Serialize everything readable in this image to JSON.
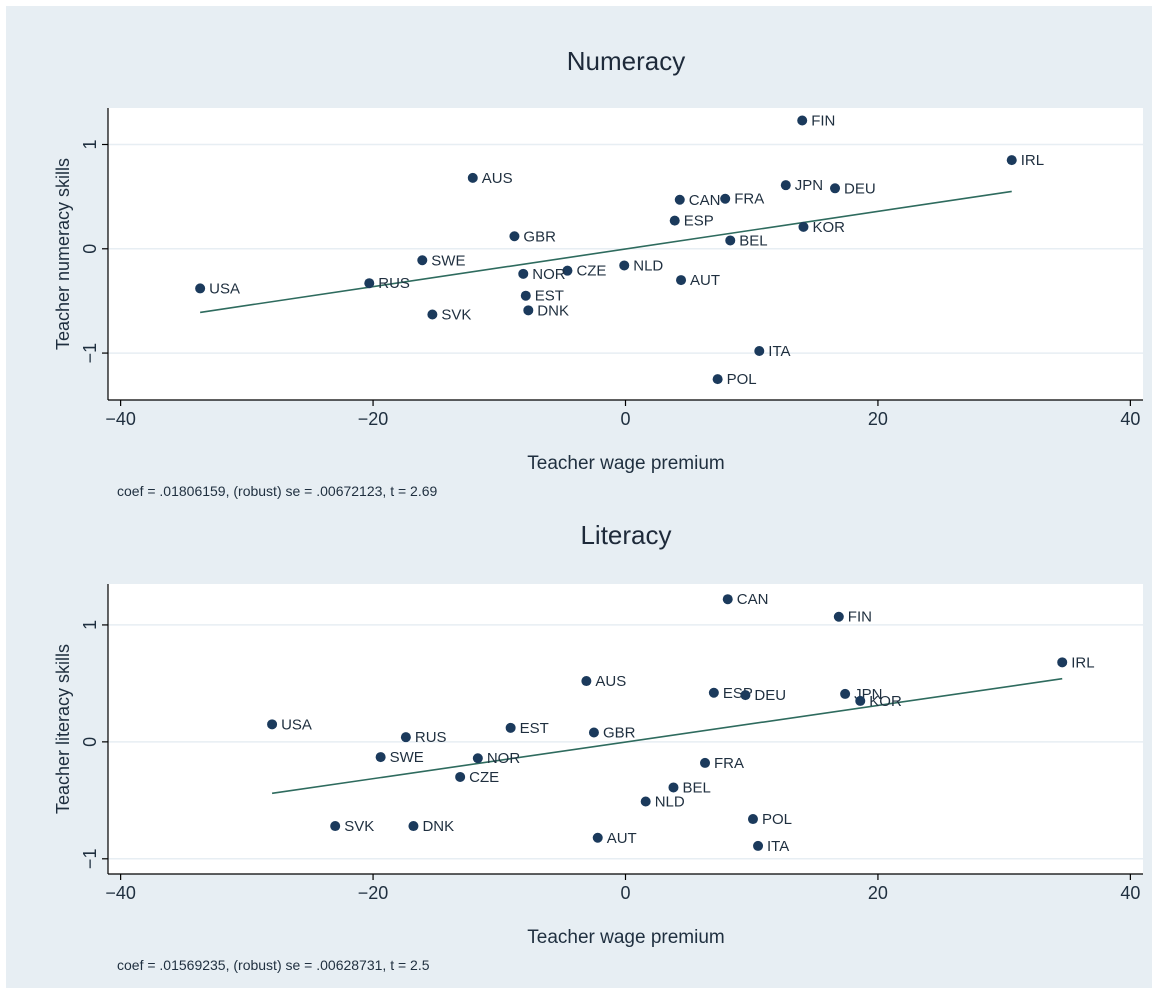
{
  "chart_data": [
    {
      "type": "scatter",
      "title": "Numeracy",
      "xlabel": "Teacher wage premium",
      "ylabel": "Teacher numeracy skills",
      "xlim": [
        -41,
        41
      ],
      "ylim": [
        -1.45,
        1.35
      ],
      "xticks": [
        -40,
        -20,
        0,
        20,
        40
      ],
      "xtick_labels": [
        "−40",
        "−20",
        "0",
        "20",
        "40"
      ],
      "yticks": [
        -1,
        0,
        1
      ],
      "ytick_labels": [
        "−1",
        "0",
        "1"
      ],
      "grid": true,
      "note": "coef = .01806159, (robust) se = .00672123, t = 2.69",
      "points": [
        {
          "label": "FIN",
          "x": 14.0,
          "y": 1.23
        },
        {
          "label": "IRL",
          "x": 30.6,
          "y": 0.85
        },
        {
          "label": "AUS",
          "x": -12.1,
          "y": 0.68
        },
        {
          "label": "JPN",
          "x": 12.7,
          "y": 0.61
        },
        {
          "label": "DEU",
          "x": 16.6,
          "y": 0.58
        },
        {
          "label": "CAN",
          "x": 4.3,
          "y": 0.47
        },
        {
          "label": "FRA",
          "x": 7.9,
          "y": 0.48
        },
        {
          "label": "ESP",
          "x": 3.9,
          "y": 0.27
        },
        {
          "label": "KOR",
          "x": 14.1,
          "y": 0.21
        },
        {
          "label": "GBR",
          "x": -8.8,
          "y": 0.12
        },
        {
          "label": "BEL",
          "x": 8.3,
          "y": 0.08
        },
        {
          "label": "SWE",
          "x": -16.1,
          "y": -0.11
        },
        {
          "label": "NLD",
          "x": -0.1,
          "y": -0.16
        },
        {
          "label": "CZE",
          "x": -4.6,
          "y": -0.21
        },
        {
          "label": "NOR",
          "x": -8.1,
          "y": -0.24
        },
        {
          "label": "AUT",
          "x": 4.4,
          "y": -0.3
        },
        {
          "label": "RUS",
          "x": -20.3,
          "y": -0.33
        },
        {
          "label": "USA",
          "x": -33.7,
          "y": -0.38
        },
        {
          "label": "EST",
          "x": -7.9,
          "y": -0.45
        },
        {
          "label": "DNK",
          "x": -7.7,
          "y": -0.59
        },
        {
          "label": "SVK",
          "x": -15.3,
          "y": -0.63
        },
        {
          "label": "ITA",
          "x": 10.6,
          "y": -0.98
        },
        {
          "label": "POL",
          "x": 7.3,
          "y": -1.25
        }
      ],
      "fit_line": {
        "x": [
          -33.7,
          30.6
        ],
        "y": [
          -0.61,
          0.55
        ]
      }
    },
    {
      "type": "scatter",
      "title": "Literacy",
      "xlabel": "Teacher wage premium",
      "ylabel": "Teacher literacy skills",
      "xlim": [
        -41,
        41
      ],
      "ylim": [
        -1.13,
        1.35
      ],
      "xticks": [
        -40,
        -20,
        0,
        20,
        40
      ],
      "xtick_labels": [
        "−40",
        "−20",
        "0",
        "20",
        "40"
      ],
      "yticks": [
        -1,
        0,
        1
      ],
      "ytick_labels": [
        "−1",
        "0",
        "1"
      ],
      "grid": true,
      "note": "coef = .01569235, (robust) se = .00628731, t = 2.5",
      "points": [
        {
          "label": "CAN",
          "x": 8.1,
          "y": 1.22
        },
        {
          "label": "FIN",
          "x": 16.9,
          "y": 1.07
        },
        {
          "label": "IRL",
          "x": 34.6,
          "y": 0.68
        },
        {
          "label": "AUS",
          "x": -3.1,
          "y": 0.52
        },
        {
          "label": "ESP",
          "x": 7.0,
          "y": 0.42
        },
        {
          "label": "JPN",
          "x": 17.4,
          "y": 0.41
        },
        {
          "label": "DEU",
          "x": 9.5,
          "y": 0.4
        },
        {
          "label": "KOR",
          "x": 18.6,
          "y": 0.35
        },
        {
          "label": "USA",
          "x": -28.0,
          "y": 0.15
        },
        {
          "label": "EST",
          "x": -9.1,
          "y": 0.12
        },
        {
          "label": "GBR",
          "x": -2.5,
          "y": 0.08
        },
        {
          "label": "RUS",
          "x": -17.4,
          "y": 0.04
        },
        {
          "label": "SWE",
          "x": -19.4,
          "y": -0.13
        },
        {
          "label": "NOR",
          "x": -11.7,
          "y": -0.14
        },
        {
          "label": "FRA",
          "x": 6.3,
          "y": -0.18
        },
        {
          "label": "CZE",
          "x": -13.1,
          "y": -0.3
        },
        {
          "label": "BEL",
          "x": 3.8,
          "y": -0.39
        },
        {
          "label": "NLD",
          "x": 1.6,
          "y": -0.51
        },
        {
          "label": "POL",
          "x": 10.1,
          "y": -0.66
        },
        {
          "label": "SVK",
          "x": -23.0,
          "y": -0.72
        },
        {
          "label": "DNK",
          "x": -16.8,
          "y": -0.72
        },
        {
          "label": "AUT",
          "x": -2.2,
          "y": -0.82
        },
        {
          "label": "ITA",
          "x": 10.5,
          "y": -0.89
        }
      ],
      "fit_line": {
        "x": [
          -28.0,
          34.6
        ],
        "y": [
          -0.44,
          0.54
        ]
      }
    }
  ],
  "colors": {
    "background": "#ffffff",
    "frame": "#e7eef3",
    "plot_area": "#ffffff",
    "grid": "#e7eef3",
    "marker": "#1b3a5c",
    "fit_line": "#2e6b5e",
    "text": "#1f2f3f",
    "title": "#1e2a3a"
  }
}
